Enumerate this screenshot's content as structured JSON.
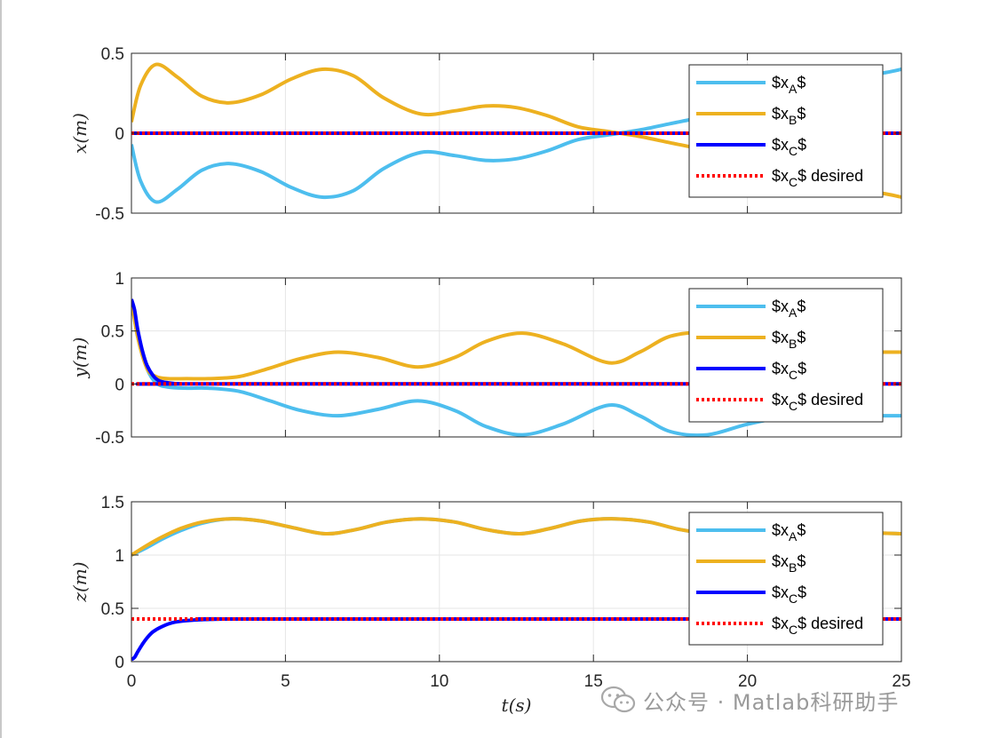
{
  "chart_data": [
    {
      "type": "line",
      "ylabel": "x(m)",
      "xlim": [
        0,
        25
      ],
      "ylim": [
        -0.5,
        0.5
      ],
      "yticks": [
        "-0.5",
        "0",
        "0.5"
      ],
      "grid": true,
      "legend_position": "top-right",
      "series": [
        {
          "name": "$x_A$",
          "color": "#4DBEEE",
          "x": [
            0,
            0.3,
            0.8,
            1.5,
            2.3,
            3.2,
            4.2,
            5.2,
            6.2,
            7.2,
            8.2,
            9.4,
            10.5,
            11.5,
            12.5,
            13.5,
            14.5,
            15.5,
            16.5,
            17.5,
            18.5,
            19.5,
            20.5,
            21.5,
            22.5,
            23.5,
            24.5,
            25
          ],
          "values": [
            -0.07,
            -0.3,
            -0.43,
            -0.35,
            -0.23,
            -0.19,
            -0.24,
            -0.34,
            -0.4,
            -0.36,
            -0.22,
            -0.12,
            -0.14,
            -0.17,
            -0.16,
            -0.11,
            -0.04,
            -0.01,
            0.02,
            0.06,
            0.1,
            0.15,
            0.2,
            0.25,
            0.3,
            0.35,
            0.38,
            0.4
          ]
        },
        {
          "name": "$x_B$",
          "color": "#EDB120",
          "x": [
            0,
            0.3,
            0.8,
            1.5,
            2.3,
            3.2,
            4.2,
            5.2,
            6.2,
            7.2,
            8.2,
            9.4,
            10.5,
            11.5,
            12.5,
            13.5,
            14.5,
            15.5,
            16.5,
            17.5,
            18.5,
            19.5,
            20.5,
            21.5,
            22.5,
            23.5,
            24.5,
            25
          ],
          "values": [
            0.07,
            0.3,
            0.43,
            0.35,
            0.23,
            0.19,
            0.24,
            0.34,
            0.4,
            0.36,
            0.22,
            0.12,
            0.14,
            0.17,
            0.16,
            0.11,
            0.04,
            0.01,
            -0.02,
            -0.06,
            -0.1,
            -0.15,
            -0.2,
            -0.25,
            -0.3,
            -0.35,
            -0.38,
            -0.4
          ]
        },
        {
          "name": "$x_C$",
          "color": "#0000FF",
          "x": [
            0,
            25
          ],
          "values": [
            0,
            0
          ]
        },
        {
          "name": "$x_C$ desired",
          "color": "#FF0000",
          "dashed": true,
          "x": [
            0,
            25
          ],
          "values": [
            0,
            0
          ]
        }
      ]
    },
    {
      "type": "line",
      "ylabel": "y(m)",
      "xlim": [
        0,
        25
      ],
      "ylim": [
        -0.5,
        1
      ],
      "yticks": [
        "-0.5",
        "0",
        "0.5",
        "1"
      ],
      "grid": true,
      "legend_position": "top-right",
      "series": [
        {
          "name": "$x_A$",
          "color": "#4DBEEE",
          "x": [
            0,
            0.2,
            0.5,
            0.8,
            1.2,
            1.8,
            2.5,
            3.5,
            4.5,
            5.5,
            6.7,
            8,
            9.3,
            10.5,
            11.5,
            12.7,
            14,
            15.5,
            16.5,
            17.5,
            18.7,
            20,
            21.5,
            22.5,
            23.5,
            24.5,
            25
          ],
          "values": [
            0.8,
            0.45,
            0.15,
            0.01,
            -0.03,
            -0.04,
            -0.04,
            -0.07,
            -0.16,
            -0.25,
            -0.3,
            -0.24,
            -0.16,
            -0.25,
            -0.4,
            -0.48,
            -0.38,
            -0.2,
            -0.3,
            -0.45,
            -0.48,
            -0.38,
            -0.3,
            -0.3,
            -0.3,
            -0.3,
            -0.3
          ]
        },
        {
          "name": "$x_B$",
          "color": "#EDB120",
          "x": [
            0,
            0.2,
            0.5,
            0.8,
            1.2,
            1.8,
            2.5,
            3.5,
            4.5,
            5.5,
            6.7,
            8,
            9.3,
            10.5,
            11.5,
            12.7,
            14,
            15.5,
            16.5,
            17.5,
            18.7,
            20,
            21.5,
            22.5,
            23.5,
            24.5,
            25
          ],
          "values": [
            0.8,
            0.45,
            0.15,
            0.07,
            0.05,
            0.05,
            0.05,
            0.07,
            0.15,
            0.24,
            0.3,
            0.25,
            0.16,
            0.25,
            0.4,
            0.48,
            0.38,
            0.2,
            0.3,
            0.45,
            0.48,
            0.38,
            0.3,
            0.3,
            0.3,
            0.3,
            0.3
          ]
        },
        {
          "name": "$x_C$",
          "color": "#0000FF",
          "x": [
            0,
            0.1,
            0.2,
            0.35,
            0.5,
            0.7,
            0.9,
            1.2,
            1.6,
            2,
            25
          ],
          "values": [
            0.8,
            0.7,
            0.52,
            0.32,
            0.18,
            0.08,
            0.03,
            0.01,
            0,
            0,
            0
          ]
        },
        {
          "name": "$x_C$ desired",
          "color": "#FF0000",
          "dashed": true,
          "x": [
            0,
            25
          ],
          "values": [
            0,
            0
          ]
        }
      ]
    },
    {
      "type": "line",
      "ylabel": "z(m)",
      "xlabel": "t(s)",
      "xlim": [
        0,
        25
      ],
      "ylim": [
        0,
        1.5
      ],
      "xticks": [
        "0",
        "5",
        "10",
        "15",
        "20",
        "25"
      ],
      "yticks": [
        "0",
        "0.5",
        "1",
        "1.5"
      ],
      "grid": true,
      "legend_position": "top-right",
      "series": [
        {
          "name": "$x_A$",
          "color": "#4DBEEE",
          "x": [
            0,
            0.5,
            1,
            1.6,
            2.3,
            3.2,
            4.2,
            5.2,
            6.3,
            7.3,
            8.3,
            9.4,
            10.5,
            11.5,
            12.6,
            13.6,
            14.6,
            15.7,
            16.8,
            17.8,
            18.9,
            20,
            21,
            22,
            23,
            24,
            25
          ],
          "values": [
            1,
            1.07,
            1.15,
            1.23,
            1.3,
            1.34,
            1.32,
            1.26,
            1.2,
            1.24,
            1.31,
            1.34,
            1.31,
            1.24,
            1.2,
            1.25,
            1.32,
            1.34,
            1.31,
            1.24,
            1.2,
            1.22,
            1.24,
            1.25,
            1.23,
            1.21,
            1.2
          ]
        },
        {
          "name": "$x_B$",
          "color": "#EDB120",
          "x": [
            0,
            0.5,
            1,
            1.6,
            2.3,
            3.2,
            4.2,
            5.2,
            6.3,
            7.3,
            8.3,
            9.4,
            10.5,
            11.5,
            12.6,
            13.6,
            14.6,
            15.7,
            16.8,
            17.8,
            18.9,
            20,
            21,
            22,
            23,
            24,
            25
          ],
          "values": [
            1,
            1.09,
            1.17,
            1.25,
            1.31,
            1.34,
            1.32,
            1.26,
            1.2,
            1.24,
            1.31,
            1.34,
            1.31,
            1.24,
            1.2,
            1.25,
            1.32,
            1.34,
            1.31,
            1.24,
            1.2,
            1.22,
            1.24,
            1.25,
            1.23,
            1.21,
            1.2
          ]
        },
        {
          "name": "$x_C$",
          "color": "#0000FF",
          "x": [
            0,
            0.1,
            0.2,
            0.35,
            0.5,
            0.7,
            1,
            1.4,
            2,
            3,
            4,
            25
          ],
          "values": [
            0.02,
            0.04,
            0.09,
            0.16,
            0.22,
            0.28,
            0.33,
            0.37,
            0.39,
            0.4,
            0.4,
            0.4
          ]
        },
        {
          "name": "$x_C$ desired",
          "color": "#FF0000",
          "dashed": true,
          "x": [
            0,
            25
          ],
          "values": [
            0.4,
            0.4
          ]
        }
      ]
    }
  ],
  "watermark": {
    "text": "公众号 · Matlab科研助手",
    "icon": "wechat-icon"
  }
}
